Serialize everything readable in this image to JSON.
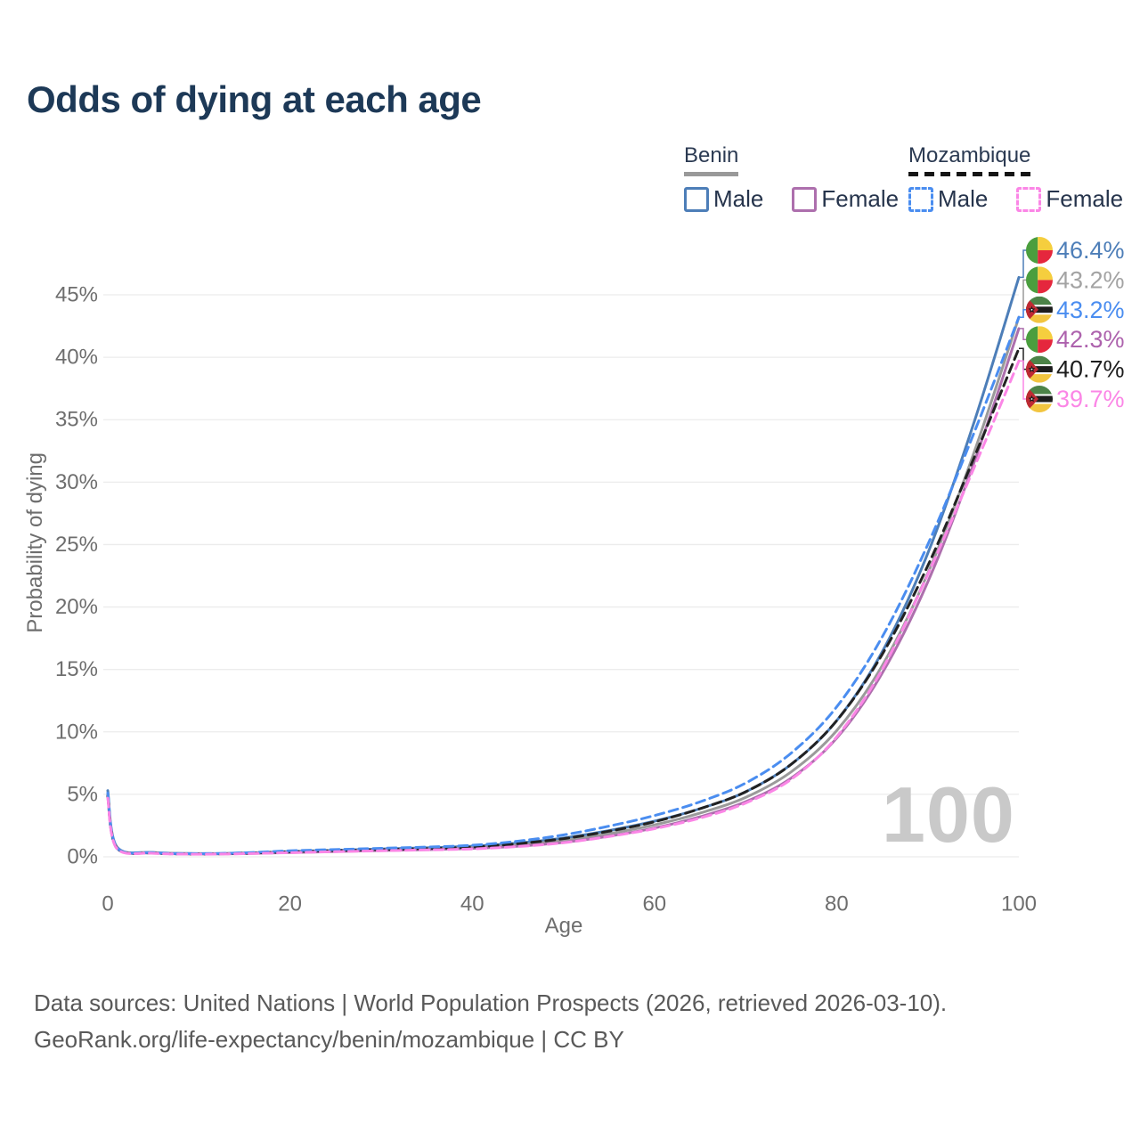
{
  "title": "Odds of dying at each age",
  "watermark": "100",
  "legend": {
    "groups": [
      {
        "label": "Benin",
        "underline_color": "#999999",
        "underline_style": "solid",
        "items": [
          {
            "label": "Male",
            "color": "#4d7eb8",
            "style": "solid"
          },
          {
            "label": "Female",
            "color": "#ad6fad",
            "style": "solid"
          }
        ]
      },
      {
        "label": "Mozambique",
        "underline_color": "#151515",
        "underline_style": "dashed",
        "items": [
          {
            "label": "Male",
            "color": "#4a8df0",
            "style": "dashed"
          },
          {
            "label": "Female",
            "color": "#fb86e6",
            "style": "dashed"
          }
        ]
      }
    ]
  },
  "chart_data": {
    "type": "line",
    "title": "Odds of dying at each age",
    "xlabel": "Age",
    "ylabel": "Probability of dying",
    "xlim": [
      0,
      100
    ],
    "ylim": [
      0,
      47.5
    ],
    "x_ticks": [
      0,
      20,
      40,
      60,
      80,
      100
    ],
    "y_ticks": [
      0,
      5,
      10,
      15,
      20,
      25,
      30,
      35,
      40,
      45
    ],
    "y_tick_suffix": "%",
    "grid": "horizontal",
    "legend_position": "top-right",
    "x": [
      0,
      1,
      5,
      10,
      15,
      20,
      25,
      30,
      35,
      40,
      45,
      50,
      55,
      60,
      65,
      70,
      75,
      80,
      85,
      90,
      95,
      100
    ],
    "series": [
      {
        "id": "benin_male",
        "name": "Benin Male",
        "country": "Benin",
        "sex": "male",
        "color": "#4d7eb8",
        "label_color": "#4d7eb8",
        "line_style": "solid",
        "end_value": "46.4%",
        "label_row": 0,
        "flag": "benin",
        "values": [
          5.3,
          0.8,
          0.35,
          0.26,
          0.3,
          0.42,
          0.52,
          0.62,
          0.72,
          0.85,
          1.1,
          1.5,
          2.1,
          2.85,
          3.85,
          5.2,
          7.4,
          10.9,
          16.4,
          24.3,
          34.6,
          46.4
        ]
      },
      {
        "id": "benin_total",
        "name": "Benin",
        "country": "Benin",
        "sex": "both",
        "color": "#9a9a9a",
        "label_color": "#a3a3a3",
        "line_style": "solid",
        "end_value": "43.2%",
        "label_row": 1,
        "flag": "benin",
        "values": [
          5.0,
          0.75,
          0.33,
          0.24,
          0.28,
          0.38,
          0.47,
          0.55,
          0.63,
          0.74,
          0.95,
          1.3,
          1.85,
          2.55,
          3.5,
          4.75,
          6.8,
          10.1,
          15.3,
          22.7,
          32.2,
          43.2
        ]
      },
      {
        "id": "benin_female",
        "name": "Benin Female",
        "country": "Benin",
        "sex": "female",
        "color": "#ad6fad",
        "label_color": "#ad62ad",
        "line_style": "solid",
        "end_value": "42.3%",
        "label_row": 3,
        "flag": "benin",
        "values": [
          4.8,
          0.7,
          0.3,
          0.22,
          0.26,
          0.34,
          0.42,
          0.5,
          0.57,
          0.67,
          0.85,
          1.15,
          1.65,
          2.3,
          3.2,
          4.4,
          6.3,
          9.5,
          14.7,
          22.0,
          31.4,
          42.3
        ]
      },
      {
        "id": "moz_total",
        "name": "Mozambique",
        "country": "Mozambique",
        "sex": "both",
        "color": "#222222",
        "label_color": "#1c1c1c",
        "line_style": "dashed",
        "end_value": "40.7%",
        "label_row": 4,
        "flag": "mozambique",
        "values": [
          4.9,
          0.7,
          0.3,
          0.23,
          0.28,
          0.4,
          0.5,
          0.58,
          0.66,
          0.78,
          1.05,
          1.45,
          2.05,
          2.8,
          3.85,
          5.2,
          7.4,
          10.9,
          16.2,
          23.3,
          31.8,
          40.7
        ]
      },
      {
        "id": "moz_male",
        "name": "Mozambique Male",
        "country": "Mozambique",
        "sex": "male",
        "color": "#4a8df0",
        "label_color": "#4a8df0",
        "line_style": "dashed",
        "end_value": "43.2%",
        "label_row": 2,
        "flag": "mozambique",
        "values": [
          5.1,
          0.75,
          0.33,
          0.25,
          0.32,
          0.48,
          0.58,
          0.68,
          0.78,
          0.92,
          1.25,
          1.75,
          2.45,
          3.3,
          4.4,
          5.9,
          8.3,
          12.0,
          17.6,
          25.0,
          33.8,
          43.2
        ]
      },
      {
        "id": "moz_female",
        "name": "Mozambique Female",
        "country": "Mozambique",
        "sex": "female",
        "color": "#fb86e6",
        "label_color": "#fb86e6",
        "line_style": "dashed",
        "end_value": "39.7%",
        "label_row": 5,
        "flag": "mozambique",
        "values": [
          4.7,
          0.65,
          0.28,
          0.21,
          0.25,
          0.33,
          0.41,
          0.48,
          0.55,
          0.63,
          0.82,
          1.12,
          1.62,
          2.25,
          3.1,
          4.3,
          6.2,
          9.6,
          15.0,
          22.6,
          31.0,
          39.7
        ]
      }
    ]
  },
  "footer": {
    "line1": "Data sources: United Nations | World Population Prospects (2026, retrieved 2026-03-10).",
    "line2": "GeoRank.org/life-expectancy/benin/mozambique | CC BY"
  }
}
